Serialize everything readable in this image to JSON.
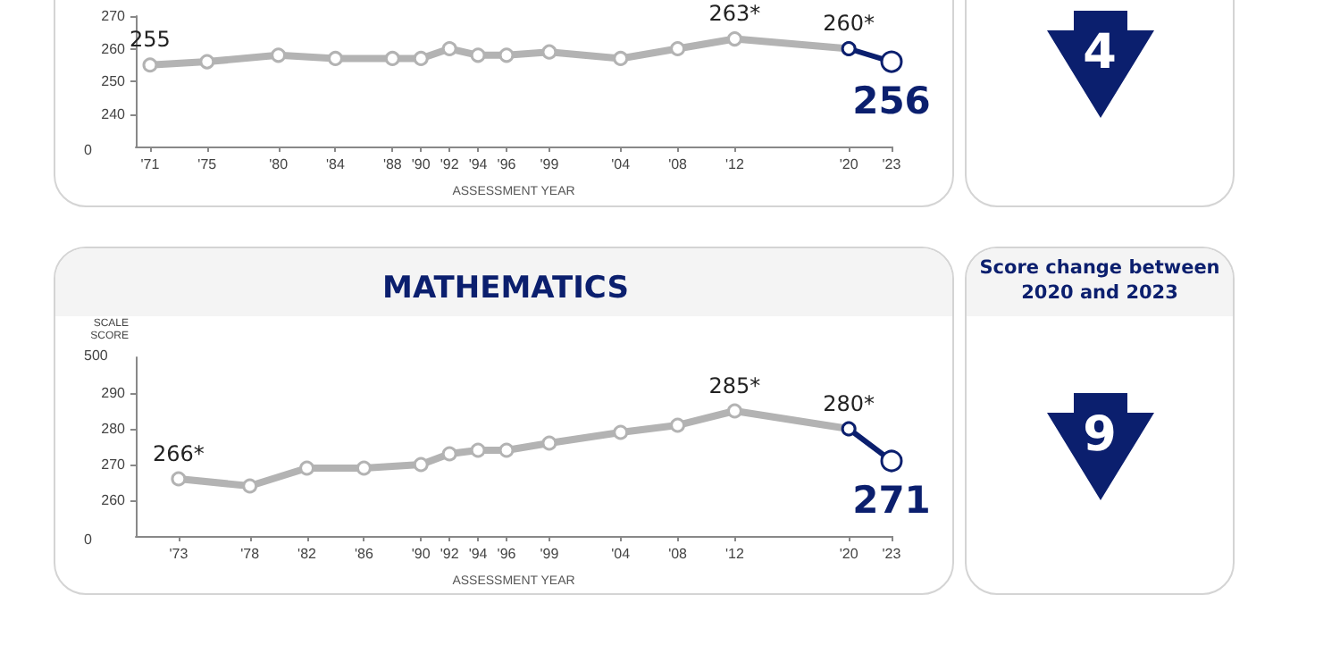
{
  "chart_data": [
    {
      "type": "line",
      "xlabel": "ASSESSMENT YEAR",
      "xlim": [
        1970,
        2023
      ],
      "ylim": [
        230,
        270
      ],
      "yticks": [
        240,
        250,
        260,
        270
      ],
      "annotations": [
        "0"
      ],
      "xticks": [
        {
          "value": 1971,
          "label": "'71"
        },
        {
          "value": 1975,
          "label": "'75"
        },
        {
          "value": 1980,
          "label": "'80"
        },
        {
          "value": 1984,
          "label": "'84"
        },
        {
          "value": 1988,
          "label": "'88"
        },
        {
          "value": 1990,
          "label": "'90"
        },
        {
          "value": 1992,
          "label": "'92"
        },
        {
          "value": 1994,
          "label": "'94"
        },
        {
          "value": 1996,
          "label": "'96"
        },
        {
          "value": 1999,
          "label": "'99"
        },
        {
          "value": 2004,
          "label": "'04"
        },
        {
          "value": 2008,
          "label": "'08"
        },
        {
          "value": 2012,
          "label": "'12"
        },
        {
          "value": 2020,
          "label": "'20"
        },
        {
          "value": 2023,
          "label": "'23"
        }
      ],
      "marker": "circle",
      "series": [
        {
          "color": "#b3b3b3",
          "x": [
            1971,
            1975,
            1980,
            1984,
            1988,
            1990,
            1992,
            1994,
            1996,
            1999,
            2004,
            2008,
            2012,
            2020
          ],
          "values": [
            255,
            256,
            258,
            257,
            257,
            257,
            260,
            258,
            258,
            259,
            257,
            260,
            263,
            260
          ],
          "value_labels": [
            "255",
            null,
            null,
            null,
            null,
            null,
            null,
            null,
            null,
            null,
            null,
            null,
            "263*",
            "260*"
          ]
        },
        {
          "color": "#0b1f6e",
          "x": [
            2020,
            2023
          ],
          "values": [
            260,
            256
          ],
          "value_labels": [
            null,
            "256"
          ]
        }
      ]
    },
    {
      "type": "other",
      "annotations": [
        "4"
      ]
    },
    {
      "type": "line",
      "title": "MATHEMATICS",
      "ylabel": "SCALE SCORE",
      "xlabel": "ASSESSMENT YEAR",
      "xlim": [
        1970,
        2023
      ],
      "ylim": [
        250,
        300
      ],
      "yticks": [
        260,
        270,
        280,
        290
      ],
      "annotations": [
        "0",
        "500"
      ],
      "xticks": [
        {
          "value": 1973,
          "label": "'73"
        },
        {
          "value": 1978,
          "label": "'78"
        },
        {
          "value": 1982,
          "label": "'82"
        },
        {
          "value": 1986,
          "label": "'86"
        },
        {
          "value": 1990,
          "label": "'90"
        },
        {
          "value": 1992,
          "label": "'92"
        },
        {
          "value": 1994,
          "label": "'94"
        },
        {
          "value": 1996,
          "label": "'96"
        },
        {
          "value": 1999,
          "label": "'99"
        },
        {
          "value": 2004,
          "label": "'04"
        },
        {
          "value": 2008,
          "label": "'08"
        },
        {
          "value": 2012,
          "label": "'12"
        },
        {
          "value": 2020,
          "label": "'20"
        },
        {
          "value": 2023,
          "label": "'23"
        }
      ],
      "marker": "circle",
      "series": [
        {
          "color": "#b3b3b3",
          "x": [
            1973,
            1978,
            1982,
            1986,
            1990,
            1992,
            1994,
            1996,
            1999,
            2004,
            2008,
            2012,
            2020
          ],
          "values": [
            266,
            264,
            269,
            269,
            270,
            273,
            274,
            274,
            276,
            279,
            281,
            285,
            280
          ],
          "value_labels": [
            "266*",
            null,
            null,
            null,
            null,
            null,
            null,
            null,
            null,
            null,
            null,
            "285*",
            "280*"
          ]
        },
        {
          "color": "#0b1f6e",
          "x": [
            2020,
            2023
          ],
          "values": [
            280,
            271
          ],
          "value_labels": [
            null,
            "271"
          ]
        }
      ]
    },
    {
      "type": "other",
      "title": "Score change between 2020 and 2023",
      "annotations": [
        "9"
      ]
    }
  ]
}
